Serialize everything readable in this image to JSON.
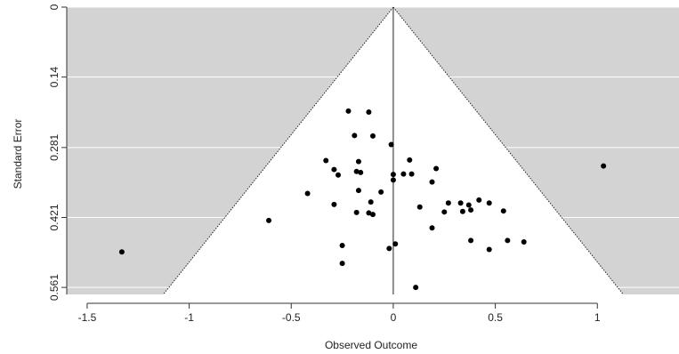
{
  "chart_data": {
    "type": "scatter",
    "subtype": "funnel-plot",
    "title": "",
    "xlabel": "Observed Outcome",
    "ylabel": "Standard Error",
    "xlim": [
      -1.6,
      1.4
    ],
    "ylim": [
      0.575,
      0
    ],
    "y_axis_reversed": true,
    "x_ticks": [
      -1.5,
      -1,
      -0.5,
      0,
      0.5,
      1
    ],
    "x_tick_labels": [
      "-1.5",
      "-1",
      "-0.5",
      "0",
      "0.5",
      "1"
    ],
    "y_ticks": [
      0,
      0.14,
      0.281,
      0.421,
      0.561
    ],
    "y_tick_labels": [
      "0",
      "0.14",
      "0.281",
      "0.421",
      "0.561"
    ],
    "funnel_center": 0,
    "funnel_z": 1.96,
    "grid": "horizontal",
    "colors": {
      "background": "#d3d3d3",
      "funnel_fill": "#ffffff",
      "points": "#000000",
      "gridlines": "#ffffff",
      "axis": "#333333"
    },
    "points": [
      {
        "x": -0.22,
        "y": 0.208
      },
      {
        "x": -0.12,
        "y": 0.21
      },
      {
        "x": -0.19,
        "y": 0.257
      },
      {
        "x": -0.1,
        "y": 0.258
      },
      {
        "x": -0.01,
        "y": 0.275
      },
      {
        "x": -0.33,
        "y": 0.307
      },
      {
        "x": -0.17,
        "y": 0.309
      },
      {
        "x": 0.08,
        "y": 0.306
      },
      {
        "x": -0.29,
        "y": 0.325
      },
      {
        "x": -0.18,
        "y": 0.329
      },
      {
        "x": -0.16,
        "y": 0.331
      },
      {
        "x": -0.27,
        "y": 0.336
      },
      {
        "x": 0.0,
        "y": 0.335
      },
      {
        "x": 0.05,
        "y": 0.334
      },
      {
        "x": 0.09,
        "y": 0.334
      },
      {
        "x": 0.21,
        "y": 0.323
      },
      {
        "x": 0.0,
        "y": 0.346
      },
      {
        "x": 0.19,
        "y": 0.35
      },
      {
        "x": -0.17,
        "y": 0.367
      },
      {
        "x": -0.06,
        "y": 0.37
      },
      {
        "x": -0.42,
        "y": 0.373
      },
      {
        "x": -0.11,
        "y": 0.39
      },
      {
        "x": -0.29,
        "y": 0.395
      },
      {
        "x": 0.13,
        "y": 0.4
      },
      {
        "x": 0.27,
        "y": 0.392
      },
      {
        "x": 0.33,
        "y": 0.392
      },
      {
        "x": 0.37,
        "y": 0.396
      },
      {
        "x": 0.42,
        "y": 0.386
      },
      {
        "x": 0.47,
        "y": 0.392
      },
      {
        "x": 0.38,
        "y": 0.406
      },
      {
        "x": -0.12,
        "y": 0.412
      },
      {
        "x": -0.1,
        "y": 0.415
      },
      {
        "x": -0.18,
        "y": 0.411
      },
      {
        "x": 0.25,
        "y": 0.41
      },
      {
        "x": 0.34,
        "y": 0.409
      },
      {
        "x": 0.54,
        "y": 0.408
      },
      {
        "x": -0.61,
        "y": 0.427
      },
      {
        "x": 0.19,
        "y": 0.442
      },
      {
        "x": 0.38,
        "y": 0.467
      },
      {
        "x": 0.56,
        "y": 0.467
      },
      {
        "x": 0.64,
        "y": 0.47
      },
      {
        "x": 0.01,
        "y": 0.474
      },
      {
        "x": -0.25,
        "y": 0.477
      },
      {
        "x": -0.02,
        "y": 0.483
      },
      {
        "x": 0.47,
        "y": 0.485
      },
      {
        "x": -1.33,
        "y": 0.49
      },
      {
        "x": -0.25,
        "y": 0.513
      },
      {
        "x": 0.11,
        "y": 0.561
      },
      {
        "x": 1.03,
        "y": 0.318
      }
    ]
  }
}
